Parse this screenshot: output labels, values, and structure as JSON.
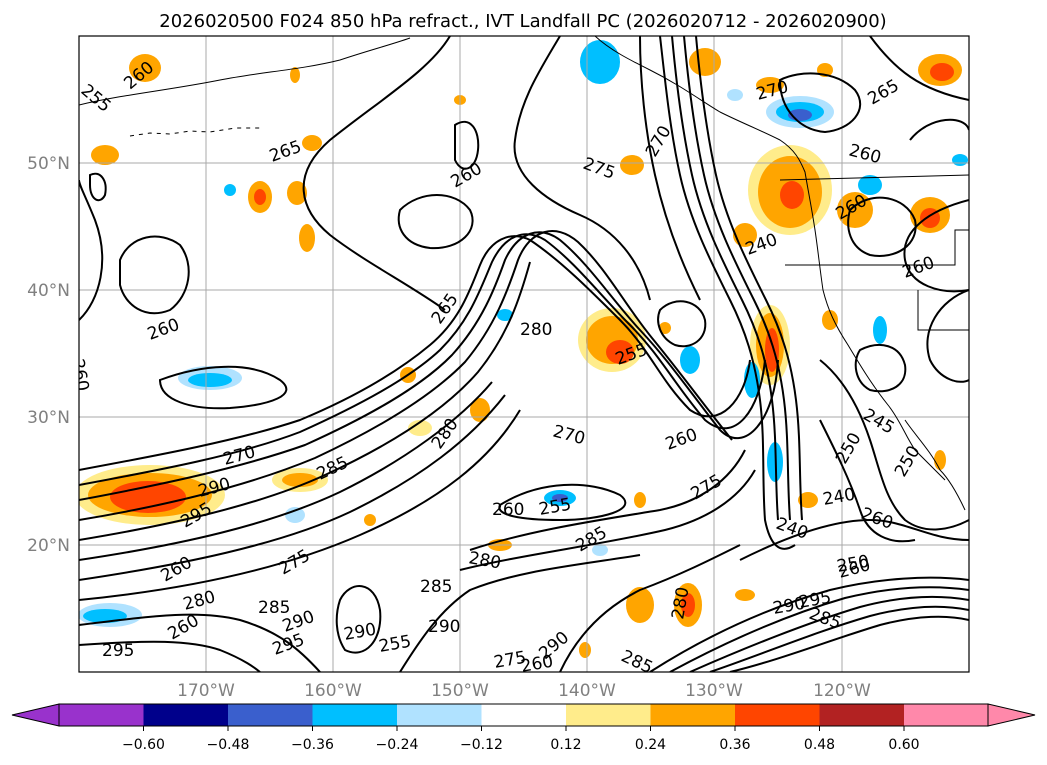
{
  "title": "2026020500 F024 850 hPa refract., IVT Landfall PC (2026020712 - 2026020900)",
  "lat_labels": [
    "50°N",
    "40°N",
    "30°N",
    "20°N"
  ],
  "lon_labels": [
    "170°W",
    "160°W",
    "150°W",
    "140°W",
    "130°W",
    "120°W"
  ],
  "colorbar": {
    "ticks": [
      "−0.60",
      "−0.48",
      "−0.36",
      "−0.24",
      "−0.12",
      "0.12",
      "0.24",
      "0.36",
      "0.48",
      "0.60"
    ],
    "colors": {
      "under": "#9932cc",
      "b1": "#00008b",
      "b2": "#3a5fcd",
      "b3": "#00bfff",
      "b4": "#b0e2ff",
      "b5": "#ffffff",
      "b6": "#ffec8b",
      "b7": "#ffa500",
      "b8": "#ff4500",
      "b9": "#b22222",
      "over": "#ff88aa"
    }
  },
  "contour_labels": [
    "260",
    "255",
    "265",
    "260",
    "275",
    "270",
    "270",
    "265",
    "260",
    "260",
    "260",
    "240",
    "260",
    "260",
    "265",
    "280",
    "255",
    "280",
    "270",
    "260",
    "245",
    "250",
    "250",
    "270",
    "290",
    "295",
    "285",
    "260",
    "255",
    "275",
    "240",
    "260",
    "240",
    "260",
    "280",
    "285",
    "295",
    "285",
    "290",
    "280",
    "285",
    "260",
    "290",
    "275",
    "260",
    "295",
    "290",
    "255",
    "285",
    "275",
    "290",
    "260",
    "285",
    "280",
    "290",
    "295",
    "250"
  ]
}
